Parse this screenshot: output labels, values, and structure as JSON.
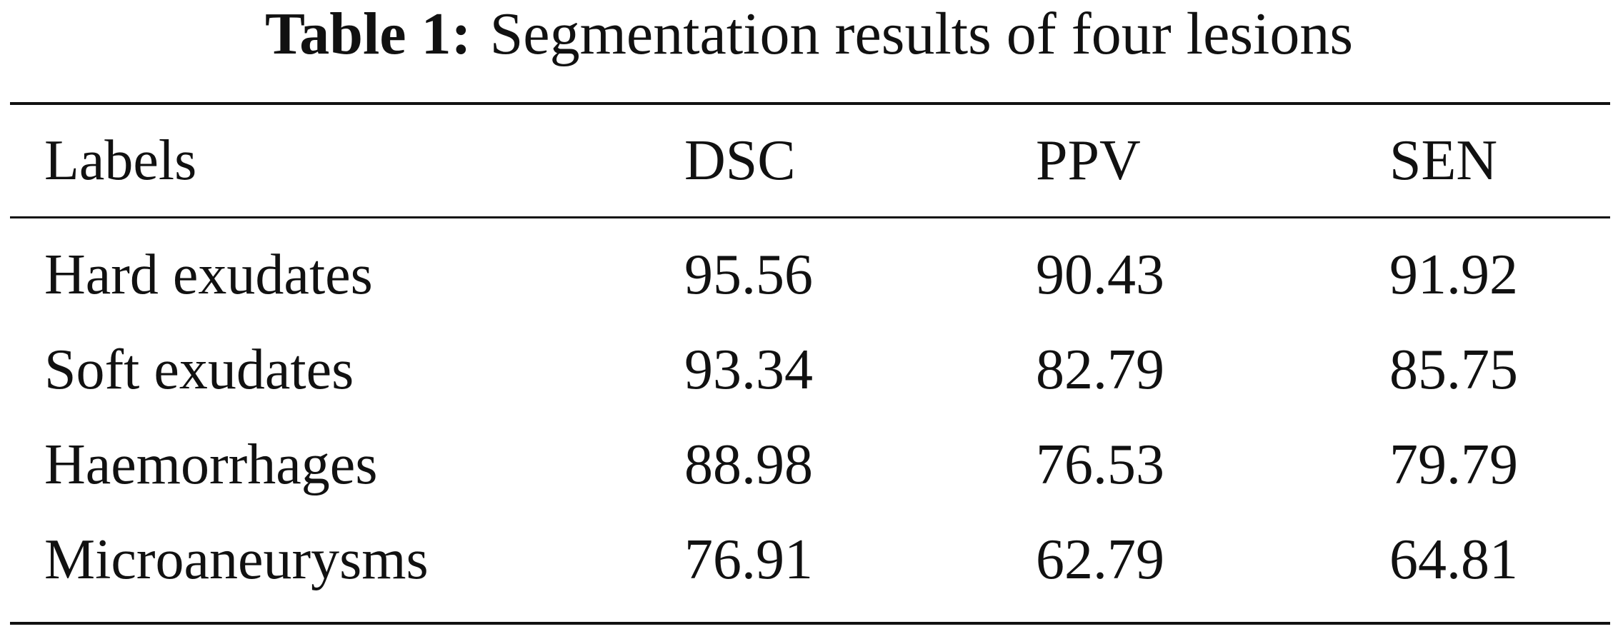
{
  "table": {
    "caption_label": "Table 1:",
    "caption_text": "Segmentation results of four lesions",
    "headers": [
      "Labels",
      "DSC",
      "PPV",
      "SEN"
    ],
    "rows": [
      [
        "Hard exudates",
        "95.56",
        "90.43",
        "91.92"
      ],
      [
        "Soft exudates",
        "93.34",
        "82.79",
        "85.75"
      ],
      [
        "Haemorrhages",
        "88.98",
        "76.53",
        "79.79"
      ],
      [
        "Microaneurysms",
        "76.91",
        "62.79",
        "64.81"
      ]
    ]
  },
  "chart_data": {
    "type": "table",
    "title": "Table 1: Segmentation results of four lesions",
    "columns": [
      "Labels",
      "DSC",
      "PPV",
      "SEN"
    ],
    "categories": [
      "Hard exudates",
      "Soft exudates",
      "Haemorrhages",
      "Microaneurysms"
    ],
    "series": [
      {
        "name": "DSC",
        "values": [
          95.56,
          93.34,
          88.98,
          76.91
        ]
      },
      {
        "name": "PPV",
        "values": [
          90.43,
          82.79,
          76.53,
          62.79
        ]
      },
      {
        "name": "SEN",
        "values": [
          91.92,
          85.75,
          79.79,
          64.81
        ]
      }
    ]
  }
}
